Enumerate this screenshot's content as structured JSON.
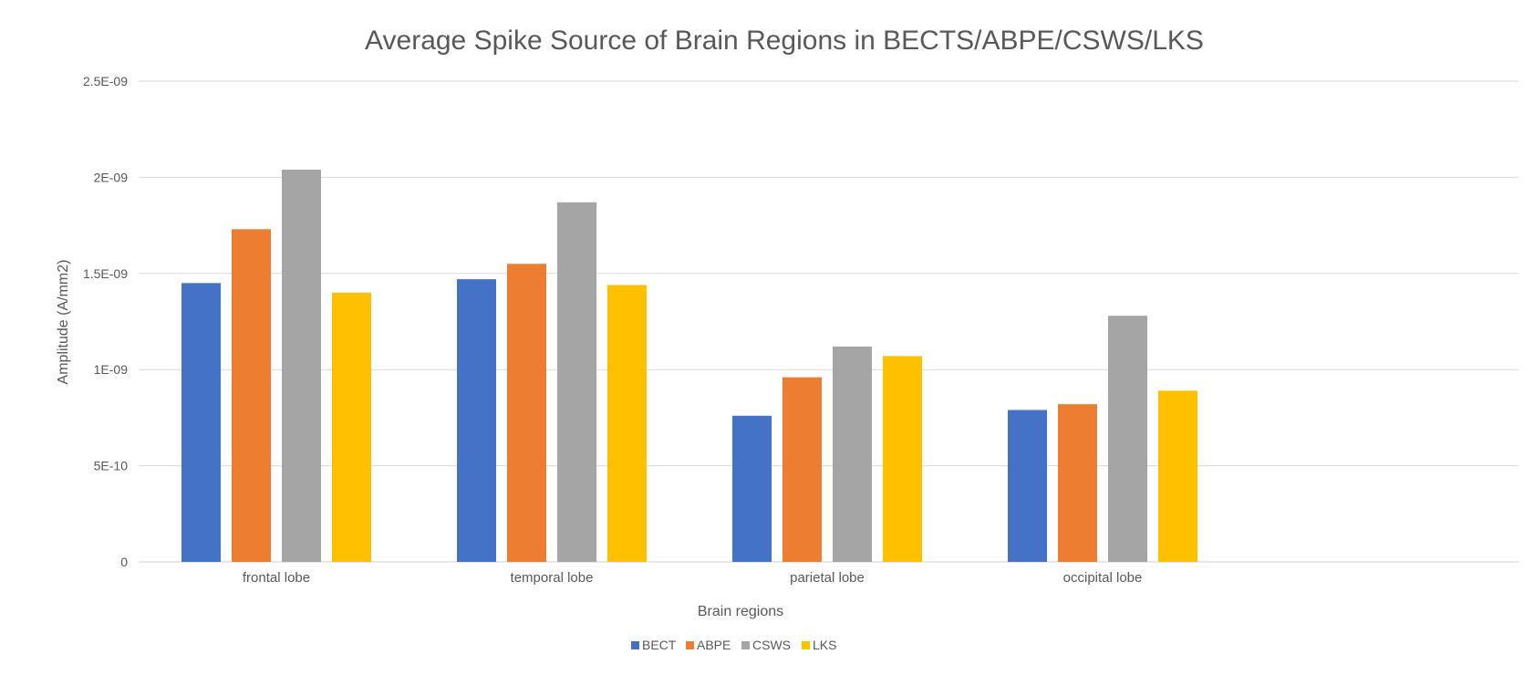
{
  "chart_data": {
    "type": "bar",
    "title": "Average Spike Source of Brain Regions in BECTS/ABPE/CSWS/LKS",
    "xlabel": "Brain regions",
    "ylabel": "Amplitude (A/mm2)",
    "categories": [
      "frontal lobe",
      "temporal lobe",
      "parietal lobe",
      "occipital lobe"
    ],
    "ylim": [
      0,
      2.5e-09
    ],
    "yticks": [
      {
        "value": 0,
        "label": "0"
      },
      {
        "value": 5e-10,
        "label": "5E-10"
      },
      {
        "value": 1e-09,
        "label": "1E-09"
      },
      {
        "value": 1.5e-09,
        "label": "1.5E-09"
      },
      {
        "value": 2e-09,
        "label": "2E-09"
      },
      {
        "value": 2.5e-09,
        "label": "2.5E-09"
      }
    ],
    "grid": true,
    "legend_position": "bottom",
    "series": [
      {
        "name": "BECT",
        "color": "#4472C4",
        "values": [
          1.45e-09,
          1.47e-09,
          7.6e-10,
          7.9e-10
        ]
      },
      {
        "name": "ABPE",
        "color": "#ED7D31",
        "values": [
          1.73e-09,
          1.55e-09,
          9.6e-10,
          8.2e-10
        ]
      },
      {
        "name": "CSWS",
        "color": "#A5A5A5",
        "values": [
          2.04e-09,
          1.87e-09,
          1.12e-09,
          1.28e-09
        ]
      },
      {
        "name": "LKS",
        "color": "#FFC000",
        "values": [
          1.4e-09,
          1.44e-09,
          1.07e-09,
          8.9e-10
        ]
      }
    ]
  }
}
